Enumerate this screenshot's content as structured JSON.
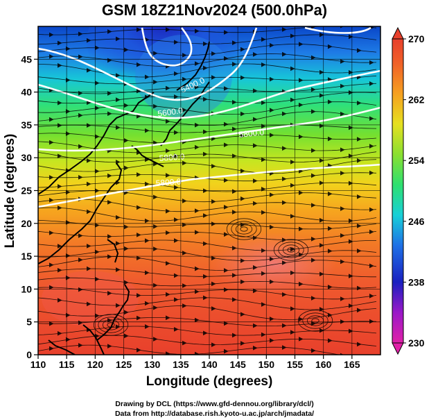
{
  "title": "GSM 18Z21Nov2024 (500.0hPa)",
  "xlabel": "Longitude (degrees)",
  "ylabel": "Latitude  (degrees)",
  "x_ticks": [
    "110",
    "115",
    "120",
    "125",
    "130",
    "135",
    "140",
    "145",
    "150",
    "155",
    "160",
    "165"
  ],
  "y_ticks": [
    "0",
    "5",
    "10",
    "15",
    "20",
    "25",
    "30",
    "35",
    "40",
    "45"
  ],
  "colorbar_ticks": [
    "230",
    "238",
    "246",
    "254",
    "262",
    "270"
  ],
  "contour_labels": [
    "5400.0",
    "5600.0",
    "5800.0",
    "5800.0",
    "5800.0"
  ],
  "credits": {
    "line1": "Drawing by DCL (https://www.gfd-dennou.org/library/dcl/)",
    "line2": "Data from http://database.rish.kyoto-u.ac.jp/arch/jmadata/"
  },
  "colors": {
    "cold": "#1c2fcf",
    "warm": "#e8402c",
    "coast": "#000000",
    "contour": "#ffffff"
  }
}
